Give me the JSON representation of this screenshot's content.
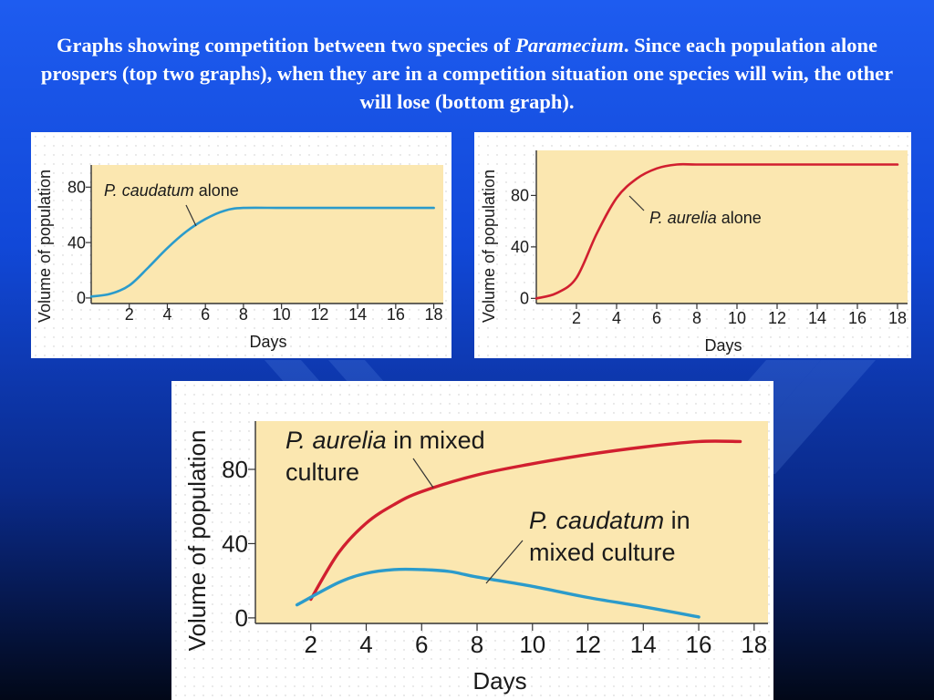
{
  "title": {
    "before": "Graphs showing competition between two species of ",
    "italic": "Paramecium",
    "after": ". Since each population alone prospers (top two graphs), when they are in a competition situation one species will win, the other will lose (bottom graph)."
  },
  "colors": {
    "plot_bg": "#fbe7b0",
    "aurelia": "#d11f2f",
    "caudatum": "#2b9bcb",
    "text": "#1a1a1a"
  },
  "chart_data": [
    {
      "id": "caudatum-alone",
      "type": "line",
      "xlabel": "Days",
      "ylabel": "Volume of population",
      "xticks": [
        2,
        4,
        6,
        8,
        10,
        12,
        14,
        16,
        18
      ],
      "yticks": [
        0,
        40,
        80
      ],
      "xlim": [
        0,
        18.5
      ],
      "ylim": [
        -4,
        96
      ],
      "series": [
        {
          "name": "P. caudatum alone",
          "label_italic": "P. caudatum",
          "label_rest": " alone",
          "color_key": "caudatum",
          "points": [
            [
              0,
              1
            ],
            [
              1,
              3
            ],
            [
              2,
              9
            ],
            [
              3,
              22
            ],
            [
              4,
              36
            ],
            [
              5,
              48
            ],
            [
              6,
              57
            ],
            [
              7,
              63
            ],
            [
              8,
              65
            ],
            [
              10,
              65
            ],
            [
              12,
              65
            ],
            [
              14,
              65
            ],
            [
              16,
              65
            ],
            [
              18,
              65
            ]
          ]
        }
      ]
    },
    {
      "id": "aurelia-alone",
      "type": "line",
      "xlabel": "Days",
      "ylabel": "Volume of population",
      "xticks": [
        2,
        4,
        6,
        8,
        10,
        12,
        14,
        16,
        18
      ],
      "yticks": [
        0,
        40,
        80
      ],
      "xlim": [
        0,
        18.5
      ],
      "ylim": [
        -4,
        115
      ],
      "series": [
        {
          "name": "P. aurelia alone",
          "label_italic": "P. aurelia",
          "label_rest": " alone",
          "color_key": "aurelia",
          "points": [
            [
              0,
              0
            ],
            [
              1,
              4
            ],
            [
              2,
              16
            ],
            [
              3,
              50
            ],
            [
              4,
              78
            ],
            [
              5,
              93
            ],
            [
              6,
              101
            ],
            [
              7,
              104
            ],
            [
              8,
              104
            ],
            [
              10,
              104
            ],
            [
              12,
              104
            ],
            [
              14,
              104
            ],
            [
              16,
              104
            ],
            [
              18,
              104
            ]
          ]
        }
      ]
    },
    {
      "id": "mixed-culture",
      "type": "line",
      "xlabel": "Days",
      "ylabel": "Volume of population",
      "xticks": [
        2,
        4,
        6,
        8,
        10,
        12,
        14,
        16,
        18
      ],
      "yticks": [
        0,
        40,
        80
      ],
      "xlim": [
        0,
        18.5
      ],
      "ylim": [
        -3,
        106
      ],
      "series": [
        {
          "name": "P. aurelia in mixed culture",
          "label_italic": "P. aurelia",
          "label_rest": " in mixed",
          "label_line2": "culture",
          "color_key": "aurelia",
          "points": [
            [
              2,
              10
            ],
            [
              3,
              35
            ],
            [
              4,
              51
            ],
            [
              5,
              61
            ],
            [
              6,
              68
            ],
            [
              8,
              77
            ],
            [
              10,
              83
            ],
            [
              12,
              88
            ],
            [
              14,
              92
            ],
            [
              16,
              95
            ],
            [
              17.5,
              95
            ]
          ]
        },
        {
          "name": "P. caudatum in mixed culture",
          "label_italic": "P. caudatum",
          "label_rest": " in",
          "label_line2": "mixed culture",
          "color_key": "caudatum",
          "points": [
            [
              1.5,
              7
            ],
            [
              3,
              19
            ],
            [
              4,
              24
            ],
            [
              5,
              26
            ],
            [
              6,
              26
            ],
            [
              7,
              25
            ],
            [
              8,
              22
            ],
            [
              10,
              17
            ],
            [
              12,
              11
            ],
            [
              14,
              6
            ],
            [
              16,
              0.5
            ]
          ]
        }
      ]
    }
  ]
}
